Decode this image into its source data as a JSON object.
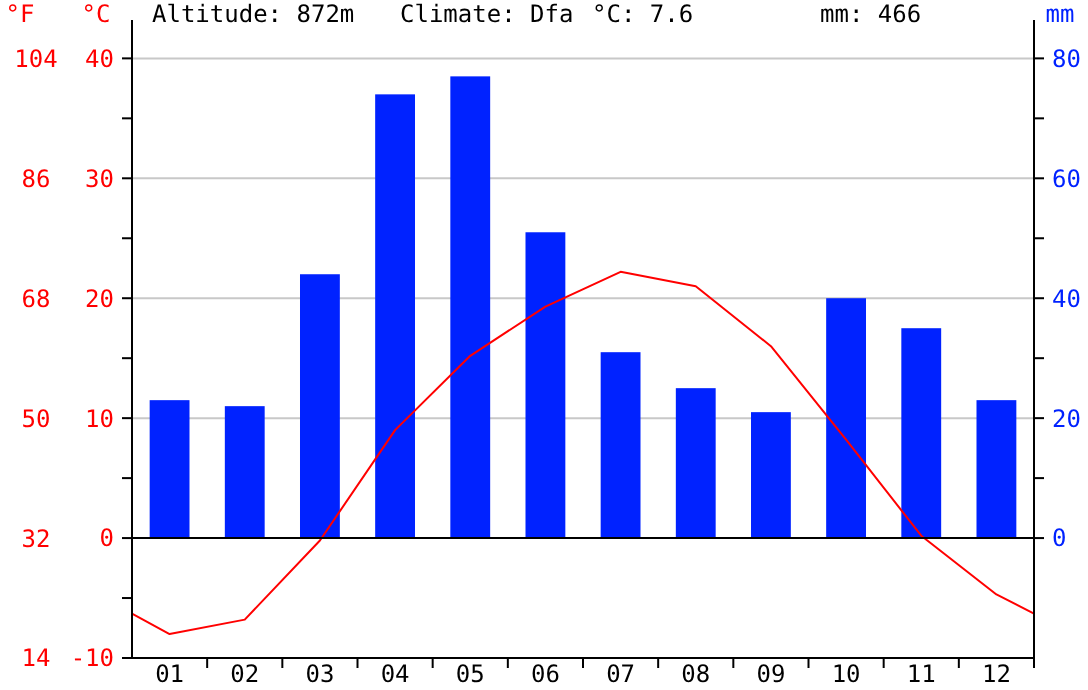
{
  "chart_data": {
    "type": "bar",
    "x": [
      1,
      2,
      3,
      4,
      5,
      6,
      7,
      8,
      9,
      10,
      11,
      12
    ],
    "xlim": [
      0.5,
      12.5
    ],
    "xticks": [
      {
        "value": 1,
        "label": "01"
      },
      {
        "value": 2,
        "label": "02"
      },
      {
        "value": 3,
        "label": "03"
      },
      {
        "value": 4,
        "label": "04"
      },
      {
        "value": 5,
        "label": "05"
      },
      {
        "value": 6,
        "label": "06"
      },
      {
        "value": 7,
        "label": "07"
      },
      {
        "value": 8,
        "label": "08"
      },
      {
        "value": 9,
        "label": "09"
      },
      {
        "value": 10,
        "label": "10"
      },
      {
        "value": 11,
        "label": "11"
      },
      {
        "value": 12,
        "label": "12"
      }
    ],
    "ylabel": "°C",
    "y2label": "mm",
    "y3label": "°F",
    "ylim": [
      -10,
      43.2
    ],
    "yticks": [
      -10,
      {
        "value": -5,
        "label": null
      },
      0,
      {
        "value": 5,
        "label": null
      },
      10,
      {
        "value": 15,
        "label": null
      },
      20,
      {
        "value": 25,
        "label": null
      },
      30,
      {
        "value": 35,
        "label": null
      },
      40
    ],
    "y2lim": [
      -20,
      86.4
    ],
    "y2ticks": [
      0,
      {
        "value": 10,
        "label": null
      },
      20,
      {
        "value": 30,
        "label": null
      },
      40,
      {
        "value": 50,
        "label": null
      },
      60,
      {
        "value": 70,
        "label": null
      },
      80
    ],
    "y3lim": [
      14,
      109.8
    ],
    "y3ticks": [
      14,
      32,
      50,
      68,
      86,
      104
    ],
    "grid": "y",
    "ref_lines": [
      {
        "axis": "y",
        "value": 0,
        "color": "#000000"
      }
    ],
    "annotations": [
      "Altitude: 872m",
      "Climate: Dfa",
      "°C: 7.6",
      "mm: 466"
    ],
    "series": [
      {
        "axis": "y2",
        "color": "#0022ff",
        "values": [
          23,
          22,
          44,
          74,
          77,
          51,
          31,
          25,
          21,
          40,
          35,
          23
        ]
      },
      {
        "type": "line",
        "axis": "y",
        "color": "#ff0000",
        "marker": "none",
        "x": [
          0.5,
          1,
          2,
          3,
          4,
          5,
          6,
          7,
          8,
          9,
          10,
          11,
          12,
          12.5
        ],
        "values": [
          -6.3,
          -8,
          -6.8,
          -0.2,
          9,
          15.2,
          19.3,
          22.2,
          21,
          16,
          8.2,
          0.2,
          -4.7,
          -6.3
        ]
      }
    ]
  }
}
